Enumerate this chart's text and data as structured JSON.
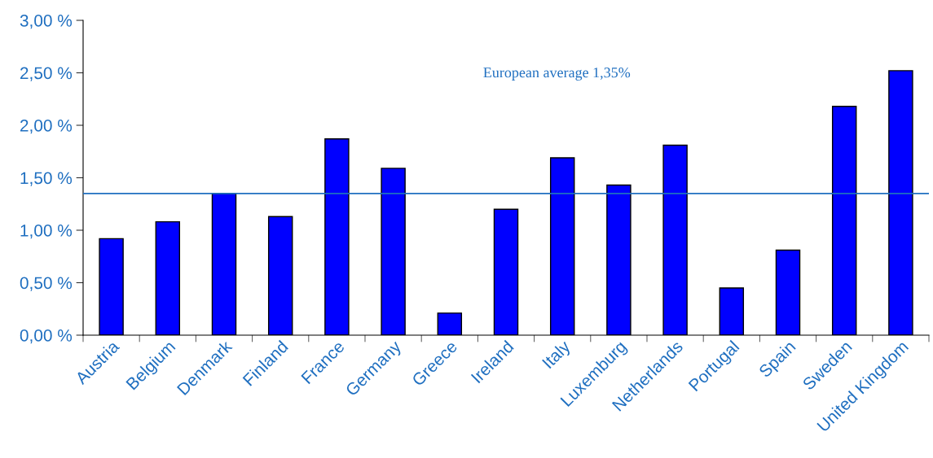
{
  "chart_data": {
    "type": "bar",
    "categories": [
      "Austria",
      "Belgium",
      "Denmark",
      "Finland",
      "France",
      "Germany",
      "Greece",
      "Ireland",
      "Italy",
      "Luxemburg",
      "Netherlands",
      "Portugal",
      "Spain",
      "Sweden",
      "United Kingdom"
    ],
    "values": [
      0.92,
      1.08,
      1.35,
      1.13,
      1.87,
      1.59,
      0.21,
      1.2,
      1.69,
      1.43,
      1.81,
      0.45,
      0.81,
      2.18,
      2.52
    ],
    "color": "#0000ff",
    "ylim": [
      0,
      3
    ],
    "yticks": [
      {
        "value": 0,
        "label": "0,00 %"
      },
      {
        "value": 0.5,
        "label": "0,50 %"
      },
      {
        "value": 1,
        "label": "1,00 %"
      },
      {
        "value": 1.5,
        "label": "1,50 %"
      },
      {
        "value": 2,
        "label": "2,00 %"
      },
      {
        "value": 2.5,
        "label": "2,50 %"
      },
      {
        "value": 3,
        "label": "3,00 %"
      }
    ],
    "ref_lines": [
      {
        "axis": "y",
        "value": 1.35,
        "label": "European average 1,35%",
        "color": "#1f6fc0"
      }
    ],
    "grid": false,
    "legend": false
  }
}
